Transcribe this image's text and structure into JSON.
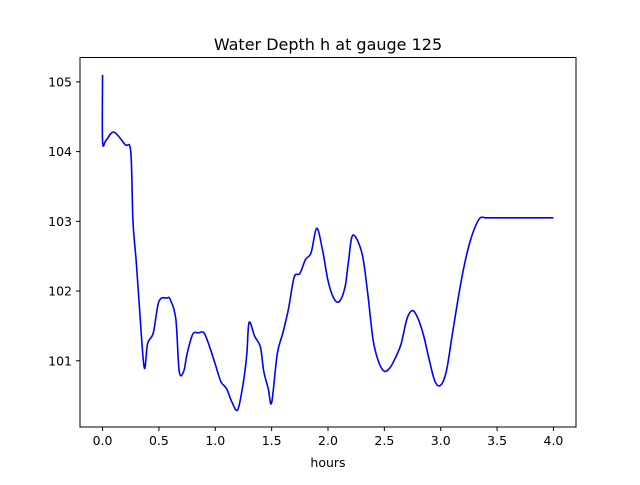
{
  "chart_data": {
    "type": "line",
    "title": "Water Depth h at gauge 125",
    "xlabel": "hours",
    "ylabel": "",
    "xlim": [
      -0.2,
      4.2
    ],
    "ylim": [
      100.05,
      105.35
    ],
    "xticks": [
      0.0,
      0.5,
      1.0,
      1.5,
      2.0,
      2.5,
      3.0,
      3.5,
      4.0
    ],
    "xtick_labels": [
      "0.0",
      "0.5",
      "1.0",
      "1.5",
      "2.0",
      "2.5",
      "3.0",
      "3.5",
      "4.0"
    ],
    "yticks": [
      101,
      102,
      103,
      104,
      105
    ],
    "ytick_labels": [
      "101",
      "102",
      "103",
      "104",
      "105"
    ],
    "grid": false,
    "series": [
      {
        "color": "#0000ff",
        "x": [
          0.0,
          0.0,
          0.03,
          0.1,
          0.2,
          0.25,
          0.27,
          0.3,
          0.33,
          0.37,
          0.4,
          0.45,
          0.5,
          0.57,
          0.6,
          0.65,
          0.68,
          0.72,
          0.75,
          0.8,
          0.85,
          0.9,
          0.95,
          1.0,
          1.05,
          1.1,
          1.15,
          1.2,
          1.25,
          1.28,
          1.3,
          1.35,
          1.4,
          1.43,
          1.47,
          1.5,
          1.55,
          1.6,
          1.65,
          1.7,
          1.75,
          1.8,
          1.85,
          1.9,
          1.95,
          2.0,
          2.05,
          2.1,
          2.15,
          2.18,
          2.22,
          2.3,
          2.35,
          2.4,
          2.45,
          2.5,
          2.55,
          2.6,
          2.65,
          2.7,
          2.75,
          2.8,
          2.85,
          2.9,
          2.95,
          3.0,
          3.05,
          3.1,
          3.15,
          3.2,
          3.25,
          3.3,
          3.35,
          3.4,
          3.45,
          3.5,
          3.55,
          3.6,
          3.65,
          3.7,
          3.75,
          3.8,
          3.85,
          3.9,
          3.95,
          4.0
        ],
        "y": [
          105.1,
          104.15,
          104.16,
          104.28,
          104.1,
          104.0,
          103.0,
          102.4,
          101.7,
          100.9,
          101.25,
          101.4,
          101.85,
          101.9,
          101.88,
          101.6,
          100.85,
          100.85,
          101.1,
          101.38,
          101.4,
          101.4,
          101.2,
          100.95,
          100.7,
          100.6,
          100.4,
          100.3,
          100.7,
          101.1,
          101.55,
          101.35,
          101.2,
          100.85,
          100.6,
          100.4,
          101.1,
          101.4,
          101.75,
          102.2,
          102.25,
          102.45,
          102.55,
          102.9,
          102.6,
          102.15,
          101.9,
          101.85,
          102.05,
          102.4,
          102.8,
          102.55,
          102.0,
          101.3,
          100.98,
          100.85,
          100.9,
          101.05,
          101.25,
          101.6,
          101.72,
          101.6,
          101.35,
          101.0,
          100.7,
          100.65,
          100.85,
          101.35,
          101.85,
          102.3,
          102.65,
          102.9,
          103.05,
          103.05,
          103.05,
          103.05,
          103.05,
          103.05,
          103.05,
          103.05,
          103.05,
          103.05,
          103.05,
          103.05,
          103.05,
          103.05
        ]
      }
    ]
  }
}
